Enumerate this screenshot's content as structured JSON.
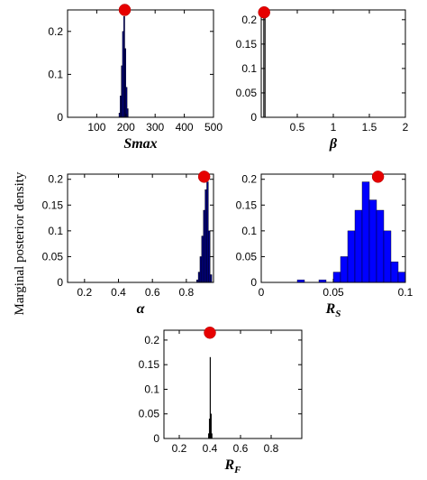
{
  "figure": {
    "ylabel": "Marginal posterior density"
  },
  "chart_data": [
    {
      "type": "bar",
      "xlabel": "Smax",
      "xlim": [
        0,
        500
      ],
      "ylim": [
        0,
        0.25
      ],
      "xticks": [
        "100",
        "200",
        "300",
        "400",
        "500"
      ],
      "xtick_values": [
        100,
        200,
        300,
        400,
        500
      ],
      "yticks": [
        "0",
        "0.1",
        "0.2"
      ],
      "ytick_values": [
        0,
        0.1,
        0.2
      ],
      "bar_color": "#000080",
      "bins": [
        {
          "x0": 176,
          "x1": 180,
          "y": 0.01
        },
        {
          "x0": 180,
          "x1": 184,
          "y": 0.05
        },
        {
          "x0": 184,
          "x1": 188,
          "y": 0.12
        },
        {
          "x0": 188,
          "x1": 192,
          "y": 0.2
        },
        {
          "x0": 192,
          "x1": 196,
          "y": 0.235
        },
        {
          "x0": 196,
          "x1": 200,
          "y": 0.16
        },
        {
          "x0": 200,
          "x1": 204,
          "y": 0.07
        },
        {
          "x0": 204,
          "x1": 208,
          "y": 0.02
        }
      ],
      "marker": {
        "x": 196,
        "y": 0.25
      }
    },
    {
      "type": "bar",
      "xlabel": "β",
      "xlim": [
        0,
        2
      ],
      "ylim": [
        0,
        0.22
      ],
      "xticks": [
        "0.5",
        "1",
        "1.5",
        "2"
      ],
      "xtick_values": [
        0.5,
        1,
        1.5,
        2
      ],
      "yticks": [
        "0",
        "0.05",
        "0.1",
        "0.15",
        "0.2"
      ],
      "ytick_values": [
        0,
        0.05,
        0.1,
        0.15,
        0.2
      ],
      "bar_color": "#555555",
      "bins": [
        {
          "x0": 0.03,
          "x1": 0.06,
          "y": 0.215
        }
      ],
      "marker": {
        "x": 0.04,
        "y": 0.215
      }
    },
    {
      "type": "bar",
      "xlabel": "α",
      "xlim": [
        0.1,
        0.96
      ],
      "ylim": [
        0,
        0.21
      ],
      "xticks": [
        "0.2",
        "0.4",
        "0.6",
        "0.8"
      ],
      "xtick_values": [
        0.2,
        0.4,
        0.6,
        0.8
      ],
      "yticks": [
        "0",
        "0.05",
        "0.1",
        "0.15",
        "0.2"
      ],
      "ytick_values": [
        0,
        0.05,
        0.1,
        0.15,
        0.2
      ],
      "bar_color": "#000080",
      "bins": [
        {
          "x0": 0.86,
          "x1": 0.87,
          "y": 0.005
        },
        {
          "x0": 0.87,
          "x1": 0.88,
          "y": 0.02
        },
        {
          "x0": 0.88,
          "x1": 0.89,
          "y": 0.05
        },
        {
          "x0": 0.89,
          "x1": 0.9,
          "y": 0.09
        },
        {
          "x0": 0.9,
          "x1": 0.91,
          "y": 0.14
        },
        {
          "x0": 0.91,
          "x1": 0.92,
          "y": 0.18
        },
        {
          "x0": 0.92,
          "x1": 0.93,
          "y": 0.195
        },
        {
          "x0": 0.93,
          "x1": 0.94,
          "y": 0.1
        },
        {
          "x0": 0.94,
          "x1": 0.95,
          "y": 0.015
        }
      ],
      "marker": {
        "x": 0.905,
        "y": 0.205
      }
    },
    {
      "type": "bar",
      "xlabel": "R",
      "xlabel_sub": "S",
      "xlim": [
        0,
        0.1
      ],
      "ylim": [
        0,
        0.21
      ],
      "xticks": [
        "0",
        "0.05",
        "0.1"
      ],
      "xtick_values": [
        0,
        0.05,
        0.1
      ],
      "yticks": [
        "0",
        "0.05",
        "0.1",
        "0.15",
        "0.2"
      ],
      "ytick_values": [
        0,
        0.05,
        0.1,
        0.15,
        0.2
      ],
      "bar_color": "#0000ff",
      "bins": [
        {
          "x0": 0.025,
          "x1": 0.03,
          "y": 0.005
        },
        {
          "x0": 0.04,
          "x1": 0.045,
          "y": 0.005
        },
        {
          "x0": 0.05,
          "x1": 0.055,
          "y": 0.02
        },
        {
          "x0": 0.055,
          "x1": 0.06,
          "y": 0.05
        },
        {
          "x0": 0.06,
          "x1": 0.065,
          "y": 0.1
        },
        {
          "x0": 0.065,
          "x1": 0.07,
          "y": 0.14
        },
        {
          "x0": 0.07,
          "x1": 0.075,
          "y": 0.195
        },
        {
          "x0": 0.075,
          "x1": 0.08,
          "y": 0.16
        },
        {
          "x0": 0.08,
          "x1": 0.085,
          "y": 0.14
        },
        {
          "x0": 0.085,
          "x1": 0.09,
          "y": 0.1
        },
        {
          "x0": 0.09,
          "x1": 0.095,
          "y": 0.04
        },
        {
          "x0": 0.095,
          "x1": 0.1,
          "y": 0.02
        }
      ],
      "marker": {
        "x": 0.081,
        "y": 0.205
      }
    },
    {
      "type": "bar",
      "xlabel": "R",
      "xlabel_sub": "F",
      "xlim": [
        0.1,
        1
      ],
      "ylim": [
        0,
        0.22
      ],
      "xticks": [
        "0.2",
        "0.4",
        "0.6",
        "0.8"
      ],
      "xtick_values": [
        0.2,
        0.4,
        0.6,
        0.8
      ],
      "yticks": [
        "0",
        "0.05",
        "0.1",
        "0.15",
        "0.2"
      ],
      "ytick_values": [
        0,
        0.05,
        0.1,
        0.15,
        0.2
      ],
      "bar_color": "#000000",
      "bins": [
        {
          "x0": 0.39,
          "x1": 0.395,
          "y": 0.01
        },
        {
          "x0": 0.395,
          "x1": 0.4,
          "y": 0.04
        },
        {
          "x0": 0.4,
          "x1": 0.405,
          "y": 0.165
        },
        {
          "x0": 0.405,
          "x1": 0.41,
          "y": 0.05
        },
        {
          "x0": 0.41,
          "x1": 0.415,
          "y": 0.01
        }
      ],
      "marker": {
        "x": 0.4,
        "y": 0.215
      }
    }
  ]
}
